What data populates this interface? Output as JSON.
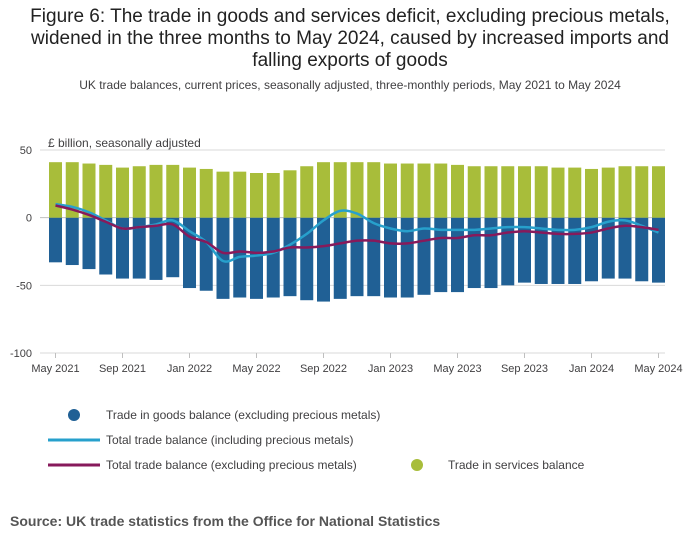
{
  "title": "Figure 6: The trade in goods and services deficit, excluding precious metals, widened in the three months to May 2024, caused by increased imports and falling exports of goods",
  "subtitle": "UK trade balances, current prices, seasonally adjusted, three-monthly periods, May 2021 to May 2024",
  "source": "Source: UK trade statistics from the Office for National Statistics",
  "colors": {
    "goods": "#206095",
    "services": "#a8bd3a",
    "total_incl": "#27a0cc",
    "total_excl": "#871a5b",
    "axis": "#d9d9d9",
    "text": "#414042"
  },
  "chart_data": {
    "type": "bar",
    "ylabel": "£ billion, seasonally adjusted",
    "ylim": [
      -100,
      50
    ],
    "yticks": [
      50,
      0,
      -50,
      -100
    ],
    "xtick_labels": [
      "May 2021",
      "Sep 2021",
      "Jan 2022",
      "May 2022",
      "Sep 2022",
      "Jan 2023",
      "May 2023",
      "Sep 2023",
      "Jan 2024",
      "May 2024"
    ],
    "xtick_positions": [
      0,
      4,
      8,
      12,
      16,
      20,
      24,
      28,
      32,
      36
    ],
    "categories": [
      "May 2021",
      "Jun 2021",
      "Jul 2021",
      "Aug 2021",
      "Sep 2021",
      "Oct 2021",
      "Nov 2021",
      "Dec 2021",
      "Jan 2022",
      "Feb 2022",
      "Mar 2022",
      "Apr 2022",
      "May 2022",
      "Jun 2022",
      "Jul 2022",
      "Aug 2022",
      "Sep 2022",
      "Oct 2022",
      "Nov 2022",
      "Dec 2022",
      "Jan 2023",
      "Feb 2023",
      "Mar 2023",
      "Apr 2023",
      "May 2023",
      "Jun 2023",
      "Jul 2023",
      "Aug 2023",
      "Sep 2023",
      "Oct 2023",
      "Nov 2023",
      "Dec 2023",
      "Jan 2024",
      "Feb 2024",
      "Mar 2024",
      "Apr 2024",
      "May 2024"
    ],
    "series": [
      {
        "name": "Trade in goods balance (excluding precious metals)",
        "kind": "bar",
        "values": [
          -33,
          -35,
          -38,
          -42,
          -45,
          -45,
          -46,
          -44,
          -52,
          -54,
          -60,
          -59,
          -60,
          -59,
          -58,
          -61,
          -62,
          -60,
          -58,
          -58,
          -59,
          -59,
          -57,
          -55,
          -55,
          -52,
          -52,
          -50,
          -48,
          -49,
          -49,
          -49,
          -47,
          -45,
          -45,
          -47,
          -48
        ]
      },
      {
        "name": "Trade in services balance",
        "kind": "bar",
        "values": [
          41,
          41,
          40,
          39,
          37,
          38,
          39,
          39,
          37,
          36,
          34,
          34,
          33,
          33,
          35,
          38,
          41,
          41,
          41,
          41,
          40,
          40,
          40,
          40,
          39,
          38,
          38,
          38,
          38,
          38,
          37,
          37,
          36,
          37,
          38,
          38,
          38
        ]
      },
      {
        "name": "Total trade balance (including precious metals)",
        "kind": "line",
        "values": [
          10,
          8,
          4,
          -2,
          -8,
          -7,
          -5,
          -2,
          -10,
          -18,
          -32,
          -29,
          -28,
          -26,
          -20,
          -12,
          -2,
          5,
          3,
          -4,
          -8,
          -10,
          -8,
          -9,
          -9,
          -9,
          -8,
          -7,
          -7,
          -8,
          -9,
          -9,
          -7,
          -3,
          -2,
          -6,
          -11
        ]
      },
      {
        "name": "Total trade balance (excluding precious metals)",
        "kind": "line",
        "values": [
          9,
          6,
          2,
          -3,
          -8,
          -7,
          -6,
          -5,
          -14,
          -18,
          -26,
          -25,
          -26,
          -25,
          -22,
          -22,
          -21,
          -19,
          -17,
          -17,
          -19,
          -19,
          -17,
          -15,
          -15,
          -13,
          -13,
          -11,
          -10,
          -11,
          -12,
          -12,
          -11,
          -8,
          -6,
          -7,
          -9
        ]
      }
    ]
  },
  "legend": {
    "goods_label": "Trade in goods balance (excluding precious metals)",
    "total_incl_label": "Total trade balance (including precious metals)",
    "total_excl_label": "Total trade balance (excluding precious metals)",
    "services_label": "Trade in services balance"
  }
}
